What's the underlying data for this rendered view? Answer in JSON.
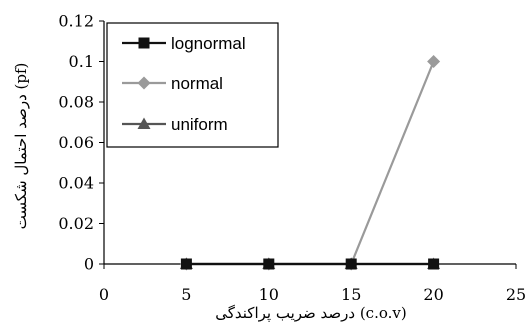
{
  "chart_data": {
    "type": "line",
    "xlabel": "درصد ضریب پراکندگی (c.o.v)",
    "ylabel": "درصد احتمال شکست (pf)",
    "xlim": [
      0,
      25
    ],
    "ylim": [
      0,
      0.12
    ],
    "xticks": [
      "0",
      "5",
      "10",
      "15",
      "20",
      "25"
    ],
    "yticks": [
      "0",
      "0.02",
      "0.04",
      "0.06",
      "0.08",
      "0.1",
      "0.12"
    ],
    "grid": false,
    "legend_position": "top-left",
    "x": [
      5,
      10,
      15,
      20
    ],
    "series": [
      {
        "name": "lognormal",
        "values": [
          0,
          0,
          0,
          0
        ],
        "color": "#111111",
        "marker": "square"
      },
      {
        "name": "normal",
        "values": [
          0,
          0,
          0,
          0.1
        ],
        "color": "#9a9a9a",
        "marker": "diamond"
      },
      {
        "name": "uniform",
        "values": [
          0,
          0,
          0,
          0
        ],
        "color": "#555555",
        "marker": "triangle"
      }
    ]
  }
}
